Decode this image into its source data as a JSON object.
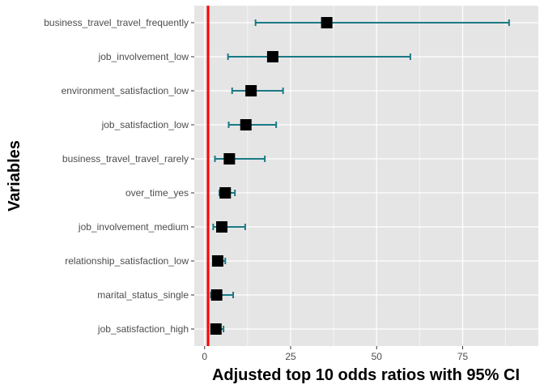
{
  "chart_data": {
    "type": "scatter",
    "xlabel": "Adjusted top 10 odds ratios with 95% CI",
    "ylabel": "Variables",
    "xlim": [
      -3,
      97
    ],
    "x_ticks": [
      0,
      25,
      50,
      75
    ],
    "grid": true,
    "reference_line": {
      "x": 1,
      "color": "#ff0000"
    },
    "colors": {
      "panel": "#e5e5e5",
      "grid": "#ffffff",
      "point": "#000000",
      "errorbar": "#1b7a86"
    },
    "items": [
      {
        "label": "business_travel_travel_frequently",
        "estimate": 35.5,
        "lower": 14.8,
        "upper": 88.5
      },
      {
        "label": "job_involvement_low",
        "estimate": 19.8,
        "lower": 6.8,
        "upper": 59.8
      },
      {
        "label": "environment_satisfaction_low",
        "estimate": 13.5,
        "lower": 8.0,
        "upper": 22.8
      },
      {
        "label": "job_satisfaction_low",
        "estimate": 12.0,
        "lower": 7.0,
        "upper": 20.8
      },
      {
        "label": "business_travel_travel_rarely",
        "estimate": 7.2,
        "lower": 3.0,
        "upper": 17.5
      },
      {
        "label": "over_time_yes",
        "estimate": 6.0,
        "lower": 4.3,
        "upper": 8.8
      },
      {
        "label": "job_involvement_medium",
        "estimate": 5.0,
        "lower": 2.5,
        "upper": 11.8
      },
      {
        "label": "relationship_satisfaction_low",
        "estimate": 3.8,
        "lower": 2.8,
        "upper": 6.0
      },
      {
        "label": "marital_status_single",
        "estimate": 3.5,
        "lower": 1.8,
        "upper": 8.3
      },
      {
        "label": "job_satisfaction_high",
        "estimate": 3.3,
        "lower": 2.0,
        "upper": 5.5
      }
    ]
  }
}
